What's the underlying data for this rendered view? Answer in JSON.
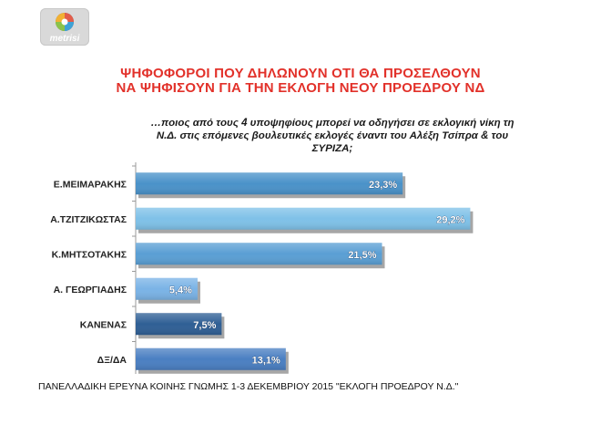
{
  "logo": {
    "text": "metrisi"
  },
  "title": {
    "line1": "ΨΗΦΟΦΟΡΟΙ ΠΟΥ ΔΗΛΩΝΟΥΝ ΟΤΙ ΘΑ ΠΡΟΣΕΛΘΟΥΝ",
    "line2": "ΝΑ ΨΗΦΙΣΟΥΝ ΓΙΑ ΤΗΝ ΕΚΛΟΓΗ ΝΕΟΥ ΠΡΟΕΔΡΟΥ ΝΔ"
  },
  "question": {
    "line1": "…ποιος από τους 4 υποψηφίους μπορεί να οδηγήσει σε εκλογική νίκη τη",
    "line2": "Ν.Δ. στις επόμενες βουλευτικές εκλογές έναντι του Αλέξη Τσίπρα & του",
    "line3": "ΣΥΡΙΖΑ;"
  },
  "footer": "ΠΑΝΕΛΛΑΔΙΚΗ ΕΡΕΥΝΑ ΚΟΙΝΗΣ ΓΝΩΜΗΣ 1-3 ΔΕΚΕΜΒΡΙΟΥ  2015 \"ΕΚΛΟΓΗ ΠΡΟΕΔΡΟΥ Ν.Δ.\"",
  "chart_data": {
    "type": "bar",
    "orientation": "horizontal",
    "categories": [
      "Ε.ΜΕΙΜΑΡΑΚΗΣ",
      "Α.ΤΖΙΤΖΙΚΩΣΤΑΣ",
      "Κ.ΜΗΤΣΟΤΑΚΗΣ",
      "Α. ΓΕΩΡΓΙΑΔΗΣ",
      "ΚΑΝΕΝΑΣ",
      "ΔΞ/ΔΑ"
    ],
    "values": [
      23.3,
      29.2,
      21.5,
      5.4,
      7.5,
      13.1
    ],
    "value_labels": [
      "23,3%",
      "29,2%",
      "21,5%",
      "5,4%",
      "7,5%",
      "13,1%"
    ],
    "colors": [
      "#4a92c9",
      "#7fc1e8",
      "#5a9fd4",
      "#7ab3e6",
      "#2f5f95",
      "#4a7fc2"
    ],
    "xlim": [
      0,
      33.3
    ],
    "grid": false,
    "legend": "none"
  }
}
